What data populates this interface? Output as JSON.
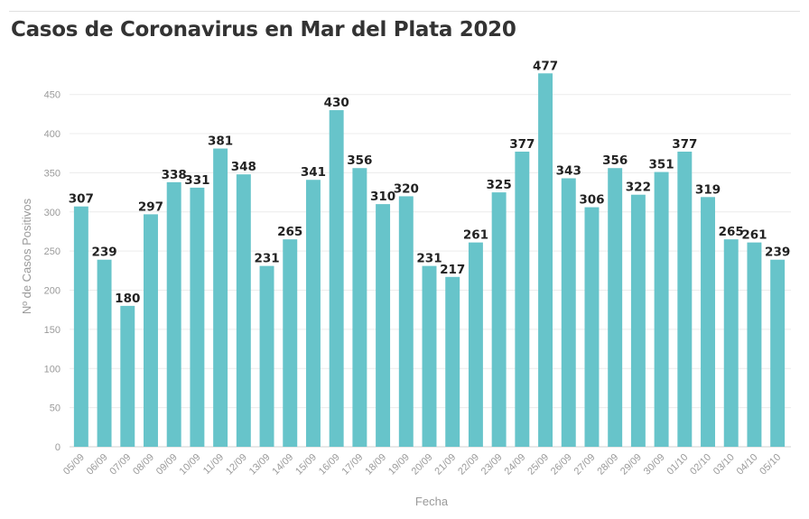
{
  "chart_data": {
    "type": "bar",
    "title": "Casos de Coronavirus en Mar del Plata 2020",
    "xlabel": "Fecha",
    "ylabel": "Nº de Casos Positivos",
    "ylim": [
      0,
      490
    ],
    "yticks": [
      0,
      50,
      100,
      150,
      200,
      250,
      300,
      350,
      400,
      450
    ],
    "grid": true,
    "bar_color": "#67c4ca",
    "categories": [
      "05/09",
      "06/09",
      "07/09",
      "08/09",
      "09/09",
      "10/09",
      "11/09",
      "12/09",
      "13/09",
      "14/09",
      "15/09",
      "16/09",
      "17/09",
      "18/09",
      "19/09",
      "20/09",
      "21/09",
      "22/09",
      "23/09",
      "24/09",
      "25/09",
      "26/09",
      "27/09",
      "28/09",
      "29/09",
      "30/09",
      "01/10",
      "02/10",
      "03/10",
      "04/10",
      "05/10"
    ],
    "values": [
      307,
      239,
      180,
      297,
      338,
      331,
      381,
      348,
      231,
      265,
      341,
      430,
      356,
      310,
      320,
      231,
      217,
      261,
      325,
      377,
      477,
      343,
      306,
      356,
      322,
      351,
      377,
      319,
      265,
      261,
      239
    ]
  }
}
